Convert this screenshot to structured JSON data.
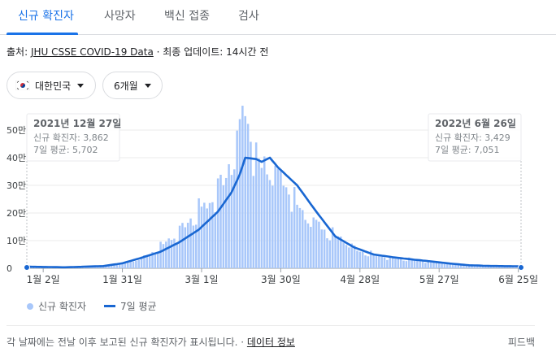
{
  "tabs": [
    {
      "label": "신규 확진자",
      "active": true
    },
    {
      "label": "사망자",
      "active": false
    },
    {
      "label": "백신 접종",
      "active": false
    },
    {
      "label": "검사",
      "active": false
    }
  ],
  "source": {
    "prefix": "출처: ",
    "link": "JHU CSSE COVID-19 Data",
    "suffix": " · 최종 업데이트: 14시간 전"
  },
  "filters": {
    "region": "대한민국",
    "range": "6개월"
  },
  "tooltips": {
    "left": {
      "date": "2021년 12월 27일",
      "cases": "신규 확진자: 3,862",
      "avg": "7일 평균: 5,702"
    },
    "right": {
      "date": "2022년 6월 26일",
      "cases": "신규 확진자: 3,429",
      "avg": "7일 평균: 7,051"
    }
  },
  "legend": {
    "bars": "신규 확진자",
    "line": "7일 평균"
  },
  "footer": {
    "text": "각 날짜에는 전날 이후 보고된 신규 확진자가 표시됩니다. · ",
    "link": "데이터 정보",
    "feedback": "피드백"
  },
  "colors": {
    "accent": "#1a73e8",
    "bar": "#a8c7fa",
    "line": "#1967d2"
  },
  "chart_data": {
    "type": "bar",
    "x_ticks": [
      "1월 2일",
      "1월 31일",
      "3월 1일",
      "3월 30일",
      "4월 28일",
      "5월 27일",
      "6월 25일"
    ],
    "y_ticks": [
      "0",
      "10만",
      "20만",
      "30만",
      "40만",
      "50만"
    ],
    "ylim": [
      0,
      500000
    ],
    "series": [
      {
        "name": "신규 확진자",
        "type": "bar",
        "keypoints": [
          [
            "2021-12-27",
            3862
          ],
          [
            "2022-01-10",
            3000
          ],
          [
            "2022-01-20",
            5500
          ],
          [
            "2022-01-27",
            14000
          ],
          [
            "2022-02-03",
            22000
          ],
          [
            "2022-02-10",
            52000
          ],
          [
            "2022-02-17",
            102000
          ],
          [
            "2022-02-24",
            168000
          ],
          [
            "2022-03-03",
            240000
          ],
          [
            "2022-03-10",
            328000
          ],
          [
            "2022-03-17",
            600000
          ],
          [
            "2022-03-22",
            350000
          ],
          [
            "2022-03-24",
            400000
          ],
          [
            "2022-03-31",
            320000
          ],
          [
            "2022-04-07",
            205000
          ],
          [
            "2022-04-14",
            148000
          ],
          [
            "2022-04-21",
            110000
          ],
          [
            "2022-04-28",
            62000
          ],
          [
            "2022-05-05",
            47000
          ],
          [
            "2022-05-12",
            35000
          ],
          [
            "2022-05-19",
            30000
          ],
          [
            "2022-05-26",
            22000
          ],
          [
            "2022-06-02",
            14000
          ],
          [
            "2022-06-09",
            8000
          ],
          [
            "2022-06-16",
            6500
          ],
          [
            "2022-06-26",
            3429
          ]
        ]
      },
      {
        "name": "7일 평균",
        "type": "line",
        "keypoints": [
          [
            "2021-12-27",
            5702
          ],
          [
            "2022-01-10",
            3500
          ],
          [
            "2022-01-24",
            8000
          ],
          [
            "2022-01-31",
            18000
          ],
          [
            "2022-02-07",
            38000
          ],
          [
            "2022-02-14",
            60000
          ],
          [
            "2022-02-21",
            95000
          ],
          [
            "2022-02-28",
            140000
          ],
          [
            "2022-03-07",
            205000
          ],
          [
            "2022-03-12",
            275000
          ],
          [
            "2022-03-15",
            340000
          ],
          [
            "2022-03-17",
            400000
          ],
          [
            "2022-03-21",
            395000
          ],
          [
            "2022-03-23",
            385000
          ],
          [
            "2022-03-26",
            400000
          ],
          [
            "2022-03-29",
            365000
          ],
          [
            "2022-04-05",
            300000
          ],
          [
            "2022-04-12",
            205000
          ],
          [
            "2022-04-19",
            115000
          ],
          [
            "2022-04-26",
            75000
          ],
          [
            "2022-05-03",
            50000
          ],
          [
            "2022-05-10",
            40000
          ],
          [
            "2022-05-17",
            32000
          ],
          [
            "2022-05-24",
            25000
          ],
          [
            "2022-05-31",
            17000
          ],
          [
            "2022-06-07",
            11000
          ],
          [
            "2022-06-14",
            8500
          ],
          [
            "2022-06-26",
            7051
          ]
        ]
      }
    ]
  }
}
